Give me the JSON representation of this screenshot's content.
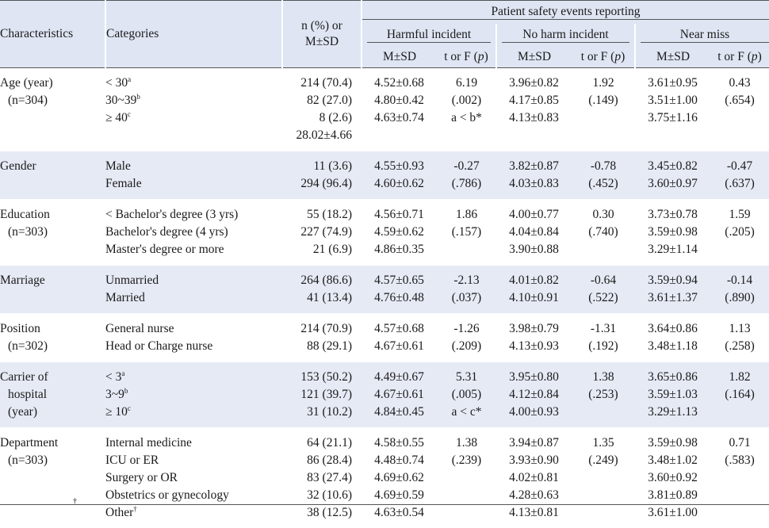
{
  "header": {
    "characteristics": "Characteristics",
    "categories": "Categories",
    "n_line1": "n (%) or",
    "n_line2": "M±SD",
    "group": "Patient safety events reporting",
    "harmful": "Harmful incident",
    "no_harm": "No harm incident",
    "near_miss": "Near miss",
    "msd": "M±SD",
    "tf_prefix": "t or F (",
    "tf_p": "p",
    "tf_suffix": ")"
  },
  "groups": [
    {
      "label": [
        "Age (year)",
        "(n=304)"
      ],
      "shaded": false,
      "rows": [
        {
          "cat": "< 30",
          "sup": "a",
          "n": "214 (70.4)",
          "h_m": "4.52±0.68",
          "h_t": "6.19",
          "nh_m": "3.96±0.82",
          "nh_t": "1.92",
          "nm_m": "3.61±0.95",
          "nm_t": "0.43"
        },
        {
          "cat": "30~39",
          "sup": "b",
          "n": "82 (27.0)",
          "h_m": "4.80±0.42",
          "h_t": "(.002)",
          "nh_m": "4.17±0.85",
          "nh_t": "(.149)",
          "nm_m": "3.51±1.00",
          "nm_t": "(.654)"
        },
        {
          "cat": "≥ 40",
          "sup": "c",
          "n": "8 (2.6)",
          "h_m": "4.63±0.74",
          "h_t": "a < b*",
          "nh_m": "4.13±0.83",
          "nh_t": "",
          "nm_m": "3.75±1.16",
          "nm_t": ""
        },
        {
          "cat": "",
          "sup": "",
          "n": "28.02±4.66",
          "h_m": "",
          "h_t": "",
          "nh_m": "",
          "nh_t": "",
          "nm_m": "",
          "nm_t": ""
        }
      ]
    },
    {
      "label": [
        "Gender"
      ],
      "shaded": true,
      "rows": [
        {
          "cat": "Male",
          "sup": "",
          "n": "11 (3.6)",
          "h_m": "4.55±0.93",
          "h_t": "-0.27",
          "nh_m": "3.82±0.87",
          "nh_t": "-0.78",
          "nm_m": "3.45±0.82",
          "nm_t": "-0.47"
        },
        {
          "cat": "Female",
          "sup": "",
          "n": "294 (96.4)",
          "h_m": "4.60±0.62",
          "h_t": "(.786)",
          "nh_m": "4.03±0.83",
          "nh_t": "(.452)",
          "nm_m": "3.60±0.97",
          "nm_t": "(.637)"
        }
      ]
    },
    {
      "label": [
        "Education",
        "(n=303)"
      ],
      "shaded": false,
      "rows": [
        {
          "cat": "< Bachelor's degree (3 yrs)",
          "sup": "",
          "n": "55 (18.2)",
          "h_m": "4.56±0.71",
          "h_t": "1.86",
          "nh_m": "4.00±0.77",
          "nh_t": "0.30",
          "nm_m": "3.73±0.78",
          "nm_t": "1.59"
        },
        {
          "cat": "Bachelor's degree (4 yrs)",
          "sup": "",
          "n": "227 (74.9)",
          "h_m": "4.59±0.62",
          "h_t": "(.157)",
          "nh_m": "4.04±0.84",
          "nh_t": "(.740)",
          "nm_m": "3.59±0.98",
          "nm_t": "(.205)"
        },
        {
          "cat": "Master's degree or more",
          "sup": "",
          "n": "21 (6.9)",
          "h_m": "4.86±0.35",
          "h_t": "",
          "nh_m": "3.90±0.88",
          "nh_t": "",
          "nm_m": "3.29±1.14",
          "nm_t": ""
        }
      ]
    },
    {
      "label": [
        "Marriage"
      ],
      "shaded": true,
      "rows": [
        {
          "cat": "Unmarried",
          "sup": "",
          "n": "264 (86.6)",
          "h_m": "4.57±0.65",
          "h_t": "-2.13",
          "nh_m": "4.01±0.82",
          "nh_t": "-0.64",
          "nm_m": "3.59±0.94",
          "nm_t": "-0.14"
        },
        {
          "cat": "Married",
          "sup": "",
          "n": "41 (13.4)",
          "h_m": "4.76±0.48",
          "h_t": "(.037)",
          "nh_m": "4.10±0.91",
          "nh_t": "(.522)",
          "nm_m": "3.61±1.37",
          "nm_t": "(.890)"
        }
      ]
    },
    {
      "label": [
        "Position",
        "(n=302)"
      ],
      "shaded": false,
      "rows": [
        {
          "cat": "General nurse",
          "sup": "",
          "n": "214 (70.9)",
          "h_m": "4.57±0.68",
          "h_t": "-1.26",
          "nh_m": "3.98±0.79",
          "nh_t": "-1.31",
          "nm_m": "3.64±0.86",
          "nm_t": "1.13"
        },
        {
          "cat": "Head or Charge nurse",
          "sup": "",
          "n": "88 (29.1)",
          "h_m": "4.67±0.61",
          "h_t": "(.209)",
          "nh_m": "4.13±0.93",
          "nh_t": "(.192)",
          "nm_m": "3.48±1.18",
          "nm_t": "(.258)"
        }
      ]
    },
    {
      "label": [
        "Carrier of",
        "hospital",
        "(year)"
      ],
      "shaded": true,
      "rows": [
        {
          "cat": "< 3",
          "sup": "a",
          "n": "153 (50.2)",
          "h_m": "4.49±0.67",
          "h_t": "5.31",
          "nh_m": "3.95±0.80",
          "nh_t": "1.38",
          "nm_m": "3.65±0.86",
          "nm_t": "1.82"
        },
        {
          "cat": "3~9",
          "sup": "b",
          "n": "121 (39.7)",
          "h_m": "4.67±0.61",
          "h_t": "(.005)",
          "nh_m": "4.12±0.84",
          "nh_t": "(.253)",
          "nm_m": "3.59±1.03",
          "nm_t": "(.164)"
        },
        {
          "cat": "≥ 10",
          "sup": "c",
          "n": "31 (10.2)",
          "h_m": "4.84±0.45",
          "h_t": "a < c*",
          "nh_m": "4.00±0.93",
          "nh_t": "",
          "nm_m": "3.29±1.13",
          "nm_t": ""
        }
      ]
    },
    {
      "label": [
        "Department",
        "(n=303)"
      ],
      "shaded": false,
      "rows": [
        {
          "cat": "Internal medicine",
          "sup": "",
          "n": "64 (21.1)",
          "h_m": "4.58±0.55",
          "h_t": "1.38",
          "nh_m": "3.94±0.87",
          "nh_t": "1.35",
          "nm_m": "3.59±0.98",
          "nm_t": "0.71"
        },
        {
          "cat": "ICU or ER",
          "sup": "",
          "n": "86 (28.4)",
          "h_m": "4.48±0.74",
          "h_t": "(.239)",
          "nh_m": "3.93±0.90",
          "nh_t": "(.249)",
          "nm_m": "3.48±1.02",
          "nm_t": "(.583)"
        },
        {
          "cat": "Surgery or OR",
          "sup": "",
          "n": "83 (27.4)",
          "h_m": "4.69±0.62",
          "h_t": "",
          "nh_m": "4.02±0.81",
          "nh_t": "",
          "nm_m": "3.60±0.92",
          "nm_t": ""
        },
        {
          "cat": "Obstetrics or gynecology",
          "sup": "",
          "n": "32 (10.6)",
          "h_m": "4.69±0.59",
          "h_t": "",
          "nh_m": "4.28±0.63",
          "nh_t": "",
          "nm_m": "3.81±0.89",
          "nm_t": ""
        },
        {
          "cat": "Other",
          "sup": "†",
          "n": "38 (12.5)",
          "h_m": "4.63±0.54",
          "h_t": "",
          "nh_m": "4.13±0.81",
          "nh_t": "",
          "nm_m": "3.61±1.00",
          "nm_t": ""
        }
      ]
    }
  ],
  "footnote_mark": "†"
}
